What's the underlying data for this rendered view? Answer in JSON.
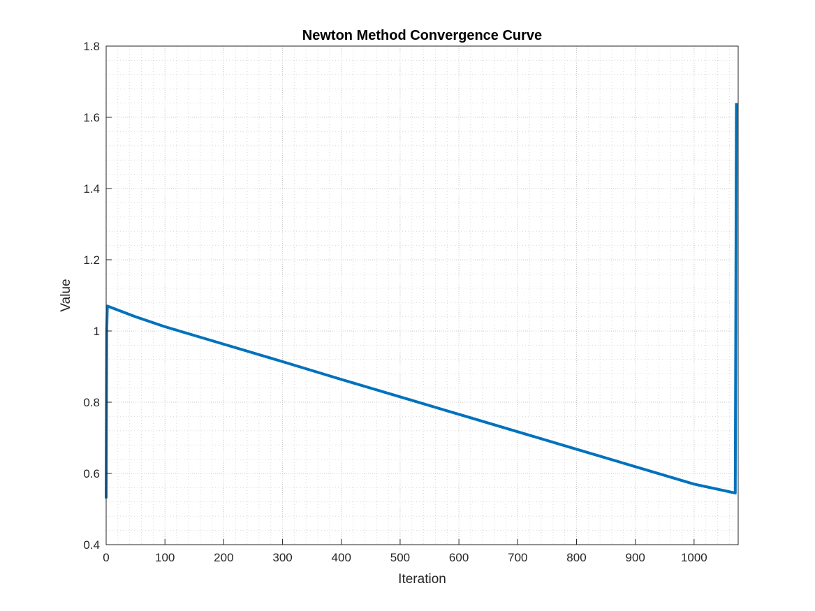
{
  "chart_data": {
    "type": "line",
    "title": "Newton Method Convergence Curve",
    "xlabel": "Iteration",
    "ylabel": "Value",
    "xlim": [
      0,
      1075
    ],
    "ylim": [
      0.4,
      1.8
    ],
    "xticks": [
      0,
      100,
      200,
      300,
      400,
      500,
      600,
      700,
      800,
      900,
      1000
    ],
    "xtick_labels": [
      "0",
      "100",
      "200",
      "300",
      "400",
      "500",
      "600",
      "700",
      "800",
      "900",
      "1000"
    ],
    "yticks": [
      0.4,
      0.6,
      0.8,
      1.0,
      1.2,
      1.4,
      1.6,
      1.8
    ],
    "ytick_labels": [
      "0.4",
      "0.6",
      "0.8",
      "1",
      "1.2",
      "1.4",
      "1.6",
      "1.8"
    ],
    "grid": "major and minor, dotted",
    "box": true,
    "series": [
      {
        "color": "#0072BD",
        "x": [
          0,
          1,
          2,
          50,
          100,
          200,
          300,
          400,
          500,
          600,
          700,
          800,
          900,
          1000,
          1070,
          1071,
          1072
        ],
        "y": [
          0.53,
          1.0,
          1.07,
          1.04,
          1.012,
          0.963,
          0.914,
          0.864,
          0.815,
          0.766,
          0.717,
          0.668,
          0.619,
          0.57,
          0.545,
          1.05,
          1.64
        ]
      }
    ]
  },
  "colors": {
    "line": "#0072BD",
    "axis": "#262626",
    "grid": "#d9d9d9",
    "background": "#ffffff"
  }
}
